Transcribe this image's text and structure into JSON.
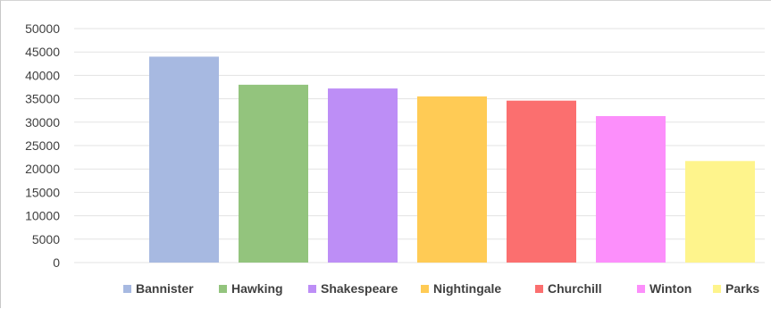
{
  "chart_data": {
    "type": "bar",
    "categories": [
      "Bannister",
      "Hawking",
      "Shakespeare",
      "Nightingale",
      "Churchill",
      "Winton",
      "Parks"
    ],
    "series": [
      {
        "values": [
          44000,
          38000,
          37200,
          35500,
          34600,
          31300,
          21700
        ],
        "colors": [
          "#a7b9e1",
          "#93c47d",
          "#bd8ef6",
          "#ffcb55",
          "#fb6f6f",
          "#fc8ffb",
          "#fef48c"
        ]
      }
    ],
    "ylim": [
      0,
      50000
    ],
    "yticks": [
      "0",
      "5000",
      "10000",
      "15000",
      "20000",
      "25000",
      "30000",
      "35000",
      "40000",
      "45000",
      "50000"
    ],
    "grid": true,
    "legend_position": "bottom",
    "gridline_color": "#e3e3e3"
  }
}
